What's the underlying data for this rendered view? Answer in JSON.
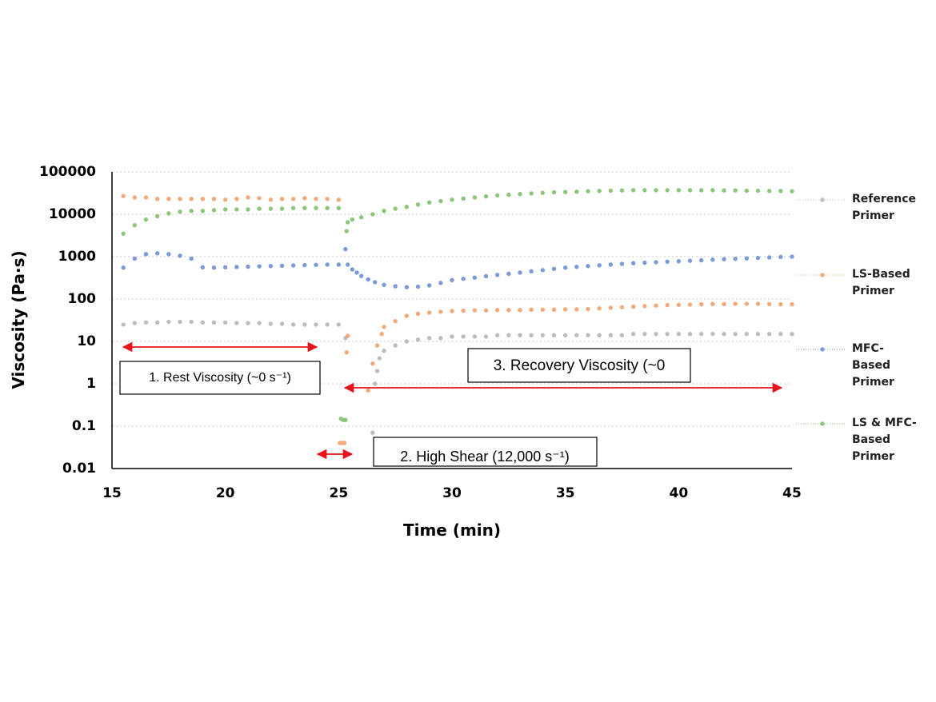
{
  "chart_data": {
    "type": "scatter",
    "y_label": "Viscosity (Pa·s)",
    "x_label": "Time (min)",
    "xlim": [
      15,
      45
    ],
    "xticks": [
      15,
      20,
      25,
      30,
      35,
      40,
      45
    ],
    "ylim": [
      0.01,
      100000
    ],
    "yticks": [
      0.01,
      0.1,
      1,
      10,
      100,
      1000,
      10000,
      100000
    ],
    "log_y": true,
    "grid": true,
    "legend": "right",
    "annotations": [
      "1. Rest Viscosity (~0 s⁻¹)",
      "2. High Shear (12,000 s⁻¹)",
      "3. Recovery Viscosity (~0"
    ],
    "series": [
      {
        "name": "Reference Primer",
        "color": "#bdbdbd",
        "x": [
          15.5,
          16,
          16.5,
          17,
          17.5,
          18,
          18.5,
          19,
          19.5,
          20,
          20.5,
          21,
          21.5,
          22,
          22.5,
          23,
          23.5,
          24,
          24.5,
          25,
          25.3,
          26.5,
          26.6,
          26.7,
          26.8,
          27,
          27.5,
          28,
          28.5,
          29,
          29.5,
          30,
          30.5,
          31,
          31.5,
          32,
          32.5,
          33,
          33.5,
          34,
          34.5,
          35,
          35.5,
          36,
          36.5,
          37,
          37.5,
          38,
          38.5,
          39,
          39.5,
          40,
          40.5,
          41,
          41.5,
          42,
          42.5,
          43,
          43.5,
          44,
          44.5,
          45
        ],
        "values": [
          25,
          27,
          28,
          28,
          29,
          29,
          29,
          28,
          28,
          28,
          27,
          27,
          27,
          26,
          26,
          25,
          25,
          25,
          25,
          25,
          12,
          0.07,
          1,
          2,
          4,
          6,
          8,
          10,
          11,
          12,
          12,
          13,
          13,
          13,
          13,
          14,
          14,
          14,
          14,
          14,
          14,
          14,
          14,
          14,
          14,
          14,
          14,
          15,
          15,
          15,
          15,
          15,
          15,
          15,
          15,
          15,
          15,
          15,
          15,
          15,
          15,
          15
        ]
      },
      {
        "name": "LS-Based Primer",
        "color": "#f4a97a",
        "x": [
          15.5,
          16,
          16.5,
          17,
          17.5,
          18,
          18.5,
          19,
          19.5,
          20,
          20.5,
          21,
          21.5,
          22,
          22.5,
          23,
          23.5,
          24,
          24.5,
          25,
          25.05,
          25.15,
          25.25,
          25.35,
          25.4,
          26.3,
          26.5,
          26.7,
          26.9,
          27,
          27.5,
          28,
          28.5,
          29,
          29.5,
          30,
          30.5,
          31,
          31.5,
          32,
          32.5,
          33,
          33.5,
          34,
          34.5,
          35,
          35.5,
          36,
          36.5,
          37,
          37.5,
          38,
          38.5,
          39,
          39.5,
          40,
          40.5,
          41,
          41.5,
          42,
          42.5,
          43,
          43.5,
          44,
          44.5,
          45
        ],
        "values": [
          27000,
          25000,
          25000,
          23000,
          23000,
          23000,
          23000,
          23000,
          23000,
          22000,
          23000,
          25000,
          24000,
          22000,
          23000,
          23000,
          24000,
          23000,
          23000,
          22000,
          0.04,
          0.04,
          0.04,
          5.5,
          13.5,
          0.7,
          3,
          8,
          15,
          22,
          30,
          40,
          45,
          48,
          50,
          52,
          53,
          54,
          54,
          55,
          55,
          55,
          56,
          56,
          56,
          57,
          57,
          58,
          60,
          62,
          64,
          66,
          68,
          70,
          72,
          73,
          74,
          75,
          76,
          76,
          77,
          77,
          77,
          76,
          75,
          75
        ]
      },
      {
        "name": "MFC-Based Primer",
        "color": "#7b9ad8",
        "x": [
          15.5,
          16,
          16.5,
          17,
          17.5,
          18,
          18.5,
          19,
          19.5,
          20,
          20.5,
          21,
          21.5,
          22,
          22.5,
          23,
          23.5,
          24,
          24.5,
          25,
          25.3,
          25.4,
          25.6,
          25.8,
          26,
          26.3,
          26.6,
          27,
          27.5,
          28,
          28.5,
          29,
          29.5,
          30,
          30.5,
          31,
          31.5,
          32,
          32.5,
          33,
          33.5,
          34,
          34.5,
          35,
          35.5,
          36,
          36.5,
          37,
          37.5,
          38,
          38.5,
          39,
          39.5,
          40,
          40.5,
          41,
          41.5,
          42,
          42.5,
          43,
          43.5,
          44,
          44.5,
          45
        ],
        "values": [
          550,
          900,
          1150,
          1200,
          1150,
          1050,
          900,
          560,
          550,
          560,
          570,
          580,
          590,
          600,
          610,
          620,
          630,
          640,
          650,
          650,
          1500,
          650,
          500,
          420,
          350,
          290,
          250,
          215,
          200,
          190,
          195,
          210,
          240,
          280,
          300,
          320,
          345,
          370,
          395,
          420,
          450,
          480,
          515,
          550,
          575,
          600,
          625,
          650,
          675,
          700,
          720,
          740,
          760,
          780,
          800,
          820,
          845,
          870,
          890,
          910,
          935,
          960,
          980,
          1000
        ]
      },
      {
        "name": "LS & MFC-Based Primer",
        "color": "#8cc67a",
        "x": [
          15.5,
          16,
          16.5,
          17,
          17.5,
          18,
          18.5,
          19,
          19.5,
          20,
          20.5,
          21,
          21.5,
          22,
          22.5,
          23,
          23.5,
          24,
          24.5,
          25,
          25.1,
          25.2,
          25.3,
          25.35,
          25.4,
          25.6,
          26,
          26.5,
          27,
          27.5,
          28,
          28.5,
          29,
          29.5,
          30,
          30.5,
          31,
          31.5,
          32,
          32.5,
          33,
          33.5,
          34,
          34.5,
          35,
          35.5,
          36,
          36.5,
          37,
          37.5,
          38,
          38.5,
          39,
          39.5,
          40,
          40.5,
          41,
          41.5,
          42,
          42.5,
          43,
          43.5,
          44,
          44.5,
          45
        ],
        "values": [
          3500,
          5500,
          7500,
          9000,
          10500,
          11500,
          12000,
          12000,
          12500,
          13000,
          13000,
          13000,
          13500,
          13500,
          13500,
          14000,
          14000,
          14000,
          14000,
          14000,
          0.15,
          0.14,
          0.14,
          4000,
          6500,
          7500,
          8500,
          10000,
          12000,
          13500,
          15000,
          17000,
          19000,
          20500,
          22000,
          23500,
          25000,
          26500,
          28000,
          29000,
          30000,
          31000,
          32000,
          33000,
          33500,
          34000,
          35000,
          35500,
          36000,
          36500,
          37000,
          37000,
          37000,
          37000,
          37000,
          37000,
          37000,
          37000,
          36500,
          36500,
          36000,
          36000,
          35500,
          35500,
          35000
        ]
      }
    ]
  }
}
